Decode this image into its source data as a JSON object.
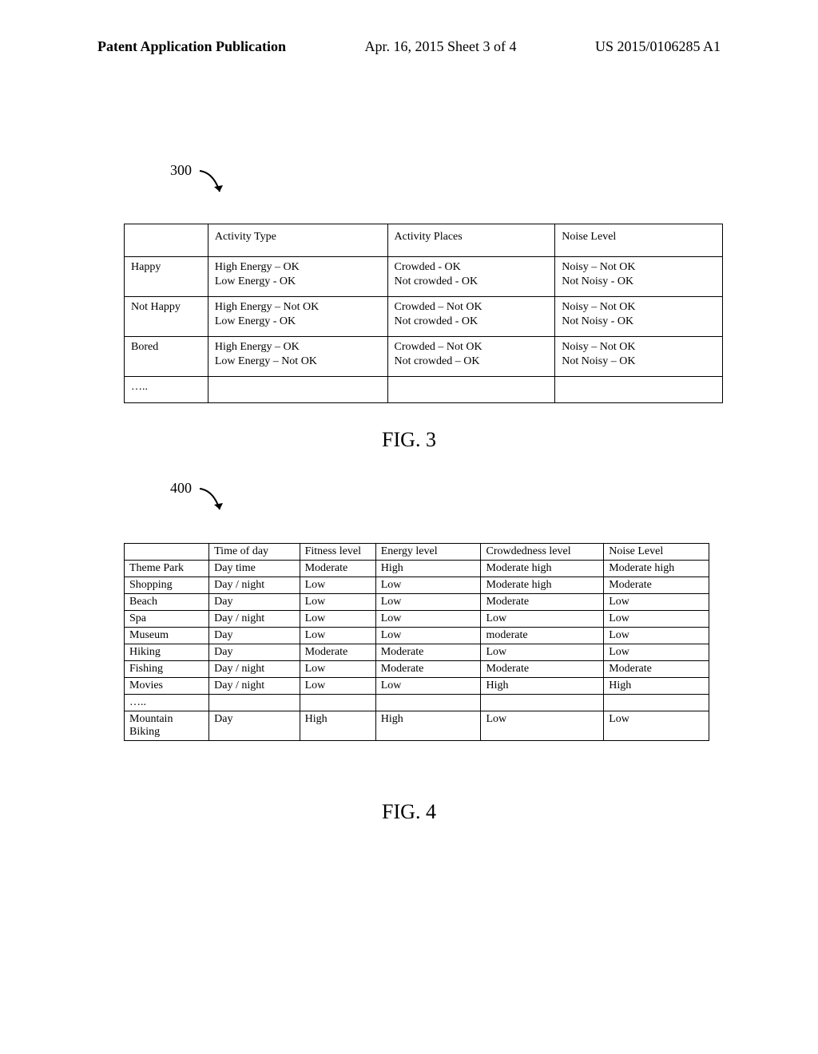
{
  "header": {
    "left": "Patent Application Publication",
    "center": "Apr. 16, 2015  Sheet 3 of 4",
    "right": "US 2015/0106285 A1"
  },
  "ref_labels": {
    "r300": "300",
    "r400": "400"
  },
  "fig_captions": {
    "fig3": "FIG. 3",
    "fig4": "FIG. 4"
  },
  "table300": {
    "headers": [
      "",
      "Activity Type",
      "Activity Places",
      "Noise Level"
    ],
    "rows": [
      [
        "Happy",
        "High Energy – OK\nLow Energy - OK",
        "Crowded - OK\nNot crowded - OK",
        "Noisy – Not OK\nNot Noisy - OK"
      ],
      [
        "Not Happy",
        "High Energy – Not OK\nLow Energy - OK",
        "Crowded – Not OK\nNot crowded - OK",
        "Noisy – Not OK\nNot Noisy - OK"
      ],
      [
        "Bored",
        "High Energy – OK\nLow Energy – Not OK",
        "Crowded – Not OK\nNot crowded – OK",
        "Noisy – Not OK\nNot Noisy – OK"
      ],
      [
        "…..",
        "",
        "",
        ""
      ]
    ]
  },
  "table400": {
    "headers": [
      "",
      "Time of day",
      "Fitness level",
      "Energy level",
      "Crowdedness level",
      "Noise Level"
    ],
    "rows": [
      [
        "Theme Park",
        "Day time",
        "Moderate",
        "High",
        "Moderate high",
        "Moderate high"
      ],
      [
        "Shopping",
        "Day / night",
        "Low",
        "Low",
        "Moderate high",
        "Moderate"
      ],
      [
        "Beach",
        "Day",
        "Low",
        "Low",
        "Moderate",
        "Low"
      ],
      [
        "Spa",
        "Day / night",
        "Low",
        "Low",
        "Low",
        "Low"
      ],
      [
        "Museum",
        "Day",
        "Low",
        "Low",
        "moderate",
        "Low"
      ],
      [
        "Hiking",
        "Day",
        "Moderate",
        "Moderate",
        "Low",
        "Low"
      ],
      [
        "Fishing",
        "Day / night",
        "Low",
        "Moderate",
        "Moderate",
        "Moderate"
      ],
      [
        "Movies",
        "Day / night",
        "Low",
        "Low",
        "High",
        "High"
      ],
      [
        "…..",
        "",
        "",
        "",
        "",
        ""
      ],
      [
        "Mountain Biking",
        "Day",
        "High",
        "High",
        "Low",
        "Low"
      ]
    ]
  }
}
